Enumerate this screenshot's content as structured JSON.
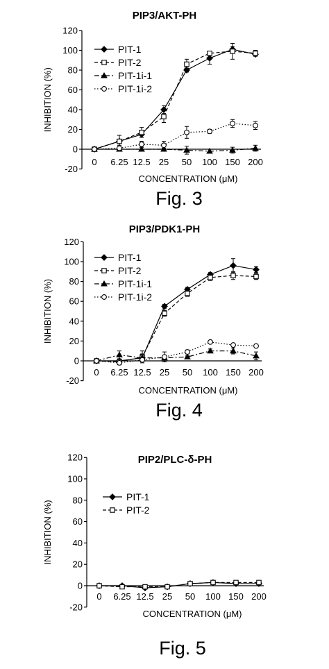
{
  "chart_data": [
    {
      "type": "line",
      "title": "PIP3/AKT-PH",
      "caption": "Fig. 3",
      "xlabel": "CONCENTRATION (μM)",
      "ylabel": "INHIBITION (%)",
      "categories": [
        "0",
        "6.25",
        "12.5",
        "25",
        "50",
        "100",
        "150",
        "200"
      ],
      "yticks": [
        "-20",
        "0",
        "20",
        "40",
        "60",
        "80",
        "100",
        "120"
      ],
      "ylim": [
        -20,
        120
      ],
      "legend_position": "top-left",
      "series": [
        {
          "name": "PIT-1",
          "marker": "diamond-filled",
          "dash": "solid",
          "values": [
            0,
            8,
            15,
            40,
            80,
            92,
            101,
            96
          ],
          "err": [
            0,
            2,
            3,
            4,
            2,
            6,
            3,
            2
          ]
        },
        {
          "name": "PIT-2",
          "marker": "square-open",
          "dash": "dashed",
          "values": [
            0,
            8,
            17,
            33,
            86,
            97,
            99,
            97
          ],
          "err": [
            0,
            6,
            5,
            6,
            5,
            2,
            8,
            3
          ]
        },
        {
          "name": "PIT-1i-1",
          "marker": "triangle-filled",
          "dash": "dashdot",
          "values": [
            0,
            0,
            0,
            0,
            -1,
            -2,
            -1,
            1
          ],
          "err": [
            0,
            1,
            2,
            1,
            4,
            2,
            3,
            3
          ]
        },
        {
          "name": "PIT-1i-2",
          "marker": "circle-open",
          "dash": "dotted",
          "values": [
            0,
            1,
            5,
            4,
            17,
            18,
            26,
            24
          ],
          "err": [
            0,
            3,
            3,
            4,
            6,
            2,
            4,
            4
          ]
        }
      ]
    },
    {
      "type": "line",
      "title": "PIP3/PDK1-PH",
      "caption": "Fig. 4",
      "xlabel": "CONCENTRATION (μM)",
      "ylabel": "INHIBITION (%)",
      "categories": [
        "0",
        "6.25",
        "12.5",
        "25",
        "50",
        "100",
        "150",
        "200"
      ],
      "yticks": [
        "-20",
        "0",
        "20",
        "40",
        "60",
        "80",
        "100",
        "120"
      ],
      "ylim": [
        -20,
        120
      ],
      "legend_position": "top-left",
      "series": [
        {
          "name": "PIT-1",
          "marker": "diamond-filled",
          "dash": "solid",
          "values": [
            0,
            0,
            3,
            55,
            72,
            87,
            96,
            92
          ],
          "err": [
            0,
            2,
            4,
            2,
            2,
            2,
            7,
            3
          ]
        },
        {
          "name": "PIT-2",
          "marker": "square-open",
          "dash": "dashed",
          "values": [
            0,
            -1,
            4,
            48,
            68,
            84,
            86,
            85
          ],
          "err": [
            0,
            2,
            6,
            3,
            3,
            3,
            4,
            3
          ]
        },
        {
          "name": "PIT-1i-1",
          "marker": "triangle-filled",
          "dash": "dashdot",
          "values": [
            0,
            6,
            3,
            3,
            4,
            10,
            10,
            5
          ],
          "err": [
            0,
            4,
            2,
            2,
            1,
            2,
            3,
            4
          ]
        },
        {
          "name": "PIT-1i-2",
          "marker": "circle-open",
          "dash": "dotted",
          "values": [
            0,
            -2,
            1,
            4,
            9,
            19,
            16,
            15
          ],
          "err": [
            0,
            2,
            2,
            5,
            2,
            1,
            1,
            1
          ]
        }
      ]
    },
    {
      "type": "line",
      "title": "PIP2/PLC-δ-PH",
      "caption": "Fig. 5",
      "xlabel": "CONCENTRATION (μM)",
      "ylabel": "INHIBITION (%)",
      "categories": [
        "0",
        "6.25",
        "12.5",
        "25",
        "50",
        "100",
        "150",
        "200"
      ],
      "yticks": [
        "-20",
        "0",
        "20",
        "40",
        "60",
        "80",
        "100",
        "120"
      ],
      "ylim": [
        -20,
        120
      ],
      "legend_position": "upper-left",
      "series": [
        {
          "name": "PIT-1",
          "marker": "diamond-filled",
          "dash": "solid",
          "values": [
            0,
            0,
            -2,
            -1,
            2,
            3,
            2,
            2
          ],
          "err": [
            0,
            1,
            1,
            1,
            1,
            1,
            1,
            1
          ]
        },
        {
          "name": "PIT-2",
          "marker": "square-open",
          "dash": "dashed",
          "values": [
            0,
            -1,
            -1,
            -1,
            2,
            3,
            3,
            3
          ],
          "err": [
            0,
            1,
            1,
            1,
            1,
            1,
            1,
            1
          ]
        }
      ]
    }
  ]
}
